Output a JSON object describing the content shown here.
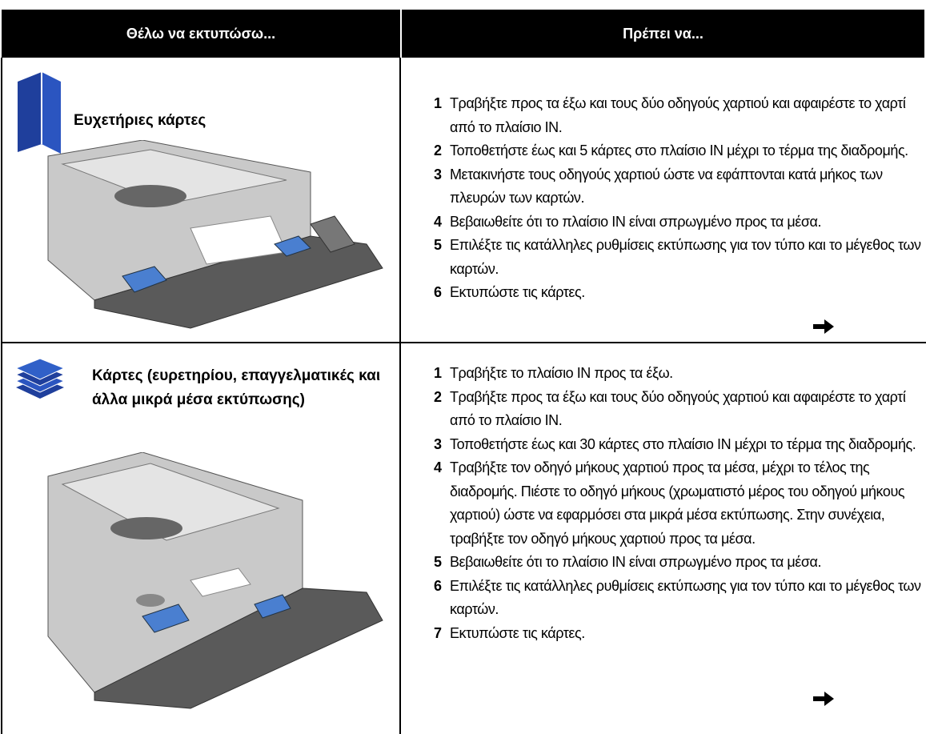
{
  "header": {
    "col1": "Θέλω να εκτυπώσω...",
    "col2": "Πρέπει να..."
  },
  "rows": [
    {
      "title": "Ευχετήριες κάρτες",
      "steps": [
        {
          "number": "1",
          "text": "Τραβήξτε προς τα έξω και τους δύο οδηγούς χαρτιού και αφαιρέστε το χαρτί από το πλαίσιο IN."
        },
        {
          "number": "2",
          "text": "Τοποθετήστε έως και 5 κάρτες στο πλαίσιο IN μέχρι το τέρμα της διαδρομής."
        },
        {
          "number": "3",
          "text": "Μετακινήστε τους οδηγούς χαρτιού ώστε να εφάπτονται κατά μήκος των πλευρών των καρτών."
        },
        {
          "number": "4",
          "text": "Βεβαιωθείτε ότι το πλαίσιο IN είναι σπρωγμένο προς τα μέσα."
        },
        {
          "number": "5",
          "text": "Επιλέξτε τις κατάλληλες ρυθμίσεις εκτύπωσης για τον τύπο και το μέγεθος των καρτών."
        },
        {
          "number": "6",
          "text": "Εκτυπώστε τις κάρτες."
        }
      ]
    },
    {
      "title": "Κάρτες (ευρετηρίου, επαγγελματικές και άλλα μικρά μέσα εκτύπωσης)",
      "steps": [
        {
          "number": "1",
          "text": "Τραβήξτε το πλαίσιο IN προς τα έξω."
        },
        {
          "number": "2",
          "text": "Τραβήξτε προς τα έξω και τους δύο οδηγούς χαρτιού και αφαιρέστε το χαρτί από το πλαίσιο IN."
        },
        {
          "number": "3",
          "text": "Τοποθετήστε έως και 30 κάρτες στο πλαίσιο IN μέχρι το τέρμα της διαδρομής."
        },
        {
          "number": "4",
          "text": "Τραβήξτε τον οδηγό μήκους χαρτιού προς τα μέσα, μέχρι το τέλος της διαδρομής. Πιέστε το οδηγό μήκους (χρωματιστό μέρος του οδηγού μήκους χαρτιού) ώστε να εφαρμόσει στα μικρά μέσα εκτύπωσης. Στην συνέχεια, τραβήξτε τον οδηγό μήκους χαρτιού προς τα μέσα."
        },
        {
          "number": "5",
          "text": "Βεβαιωθείτε ότι το πλαίσιο IN είναι σπρωγμένο προς τα μέσα."
        },
        {
          "number": "6",
          "text": "Επιλέξτε τις κατάλληλες ρυθμίσεις εκτύπωσης για τον τύπο και το μέγεθος των καρτών."
        },
        {
          "number": "7",
          "text": "Εκτυπώστε τις κάρτες."
        }
      ]
    }
  ]
}
